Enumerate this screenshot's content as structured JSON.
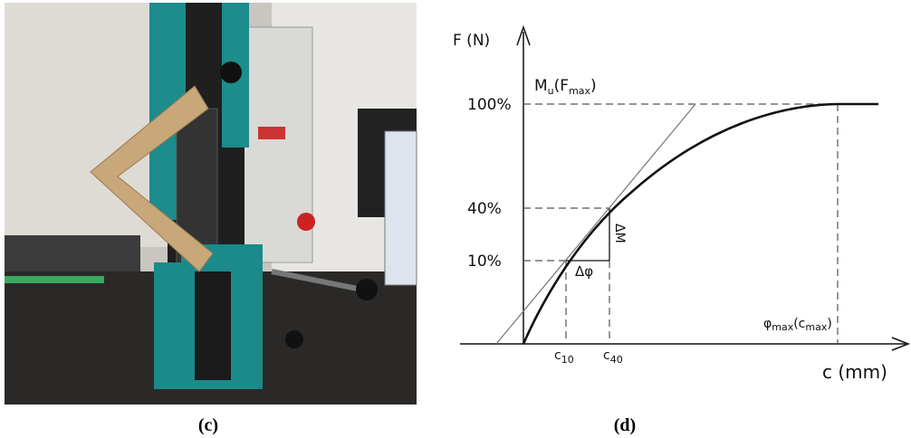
{
  "figure_c": {
    "caption": "(c)"
  },
  "figure_d": {
    "caption": "(d)",
    "y_axis_label": "F (N)",
    "x_axis_label": "c (mm)",
    "y_levels": [
      "100%",
      "40%",
      "10%"
    ],
    "max_moment_label": [
      "M",
      "u",
      "(F",
      "max",
      ")"
    ],
    "delta_phi": "Δφ",
    "delta_m": "ΔM",
    "c10": [
      "c",
      "10"
    ],
    "c40": [
      "c",
      "40"
    ],
    "phi_max_label": [
      "φ",
      "max",
      "(c",
      "max",
      ")"
    ]
  }
}
